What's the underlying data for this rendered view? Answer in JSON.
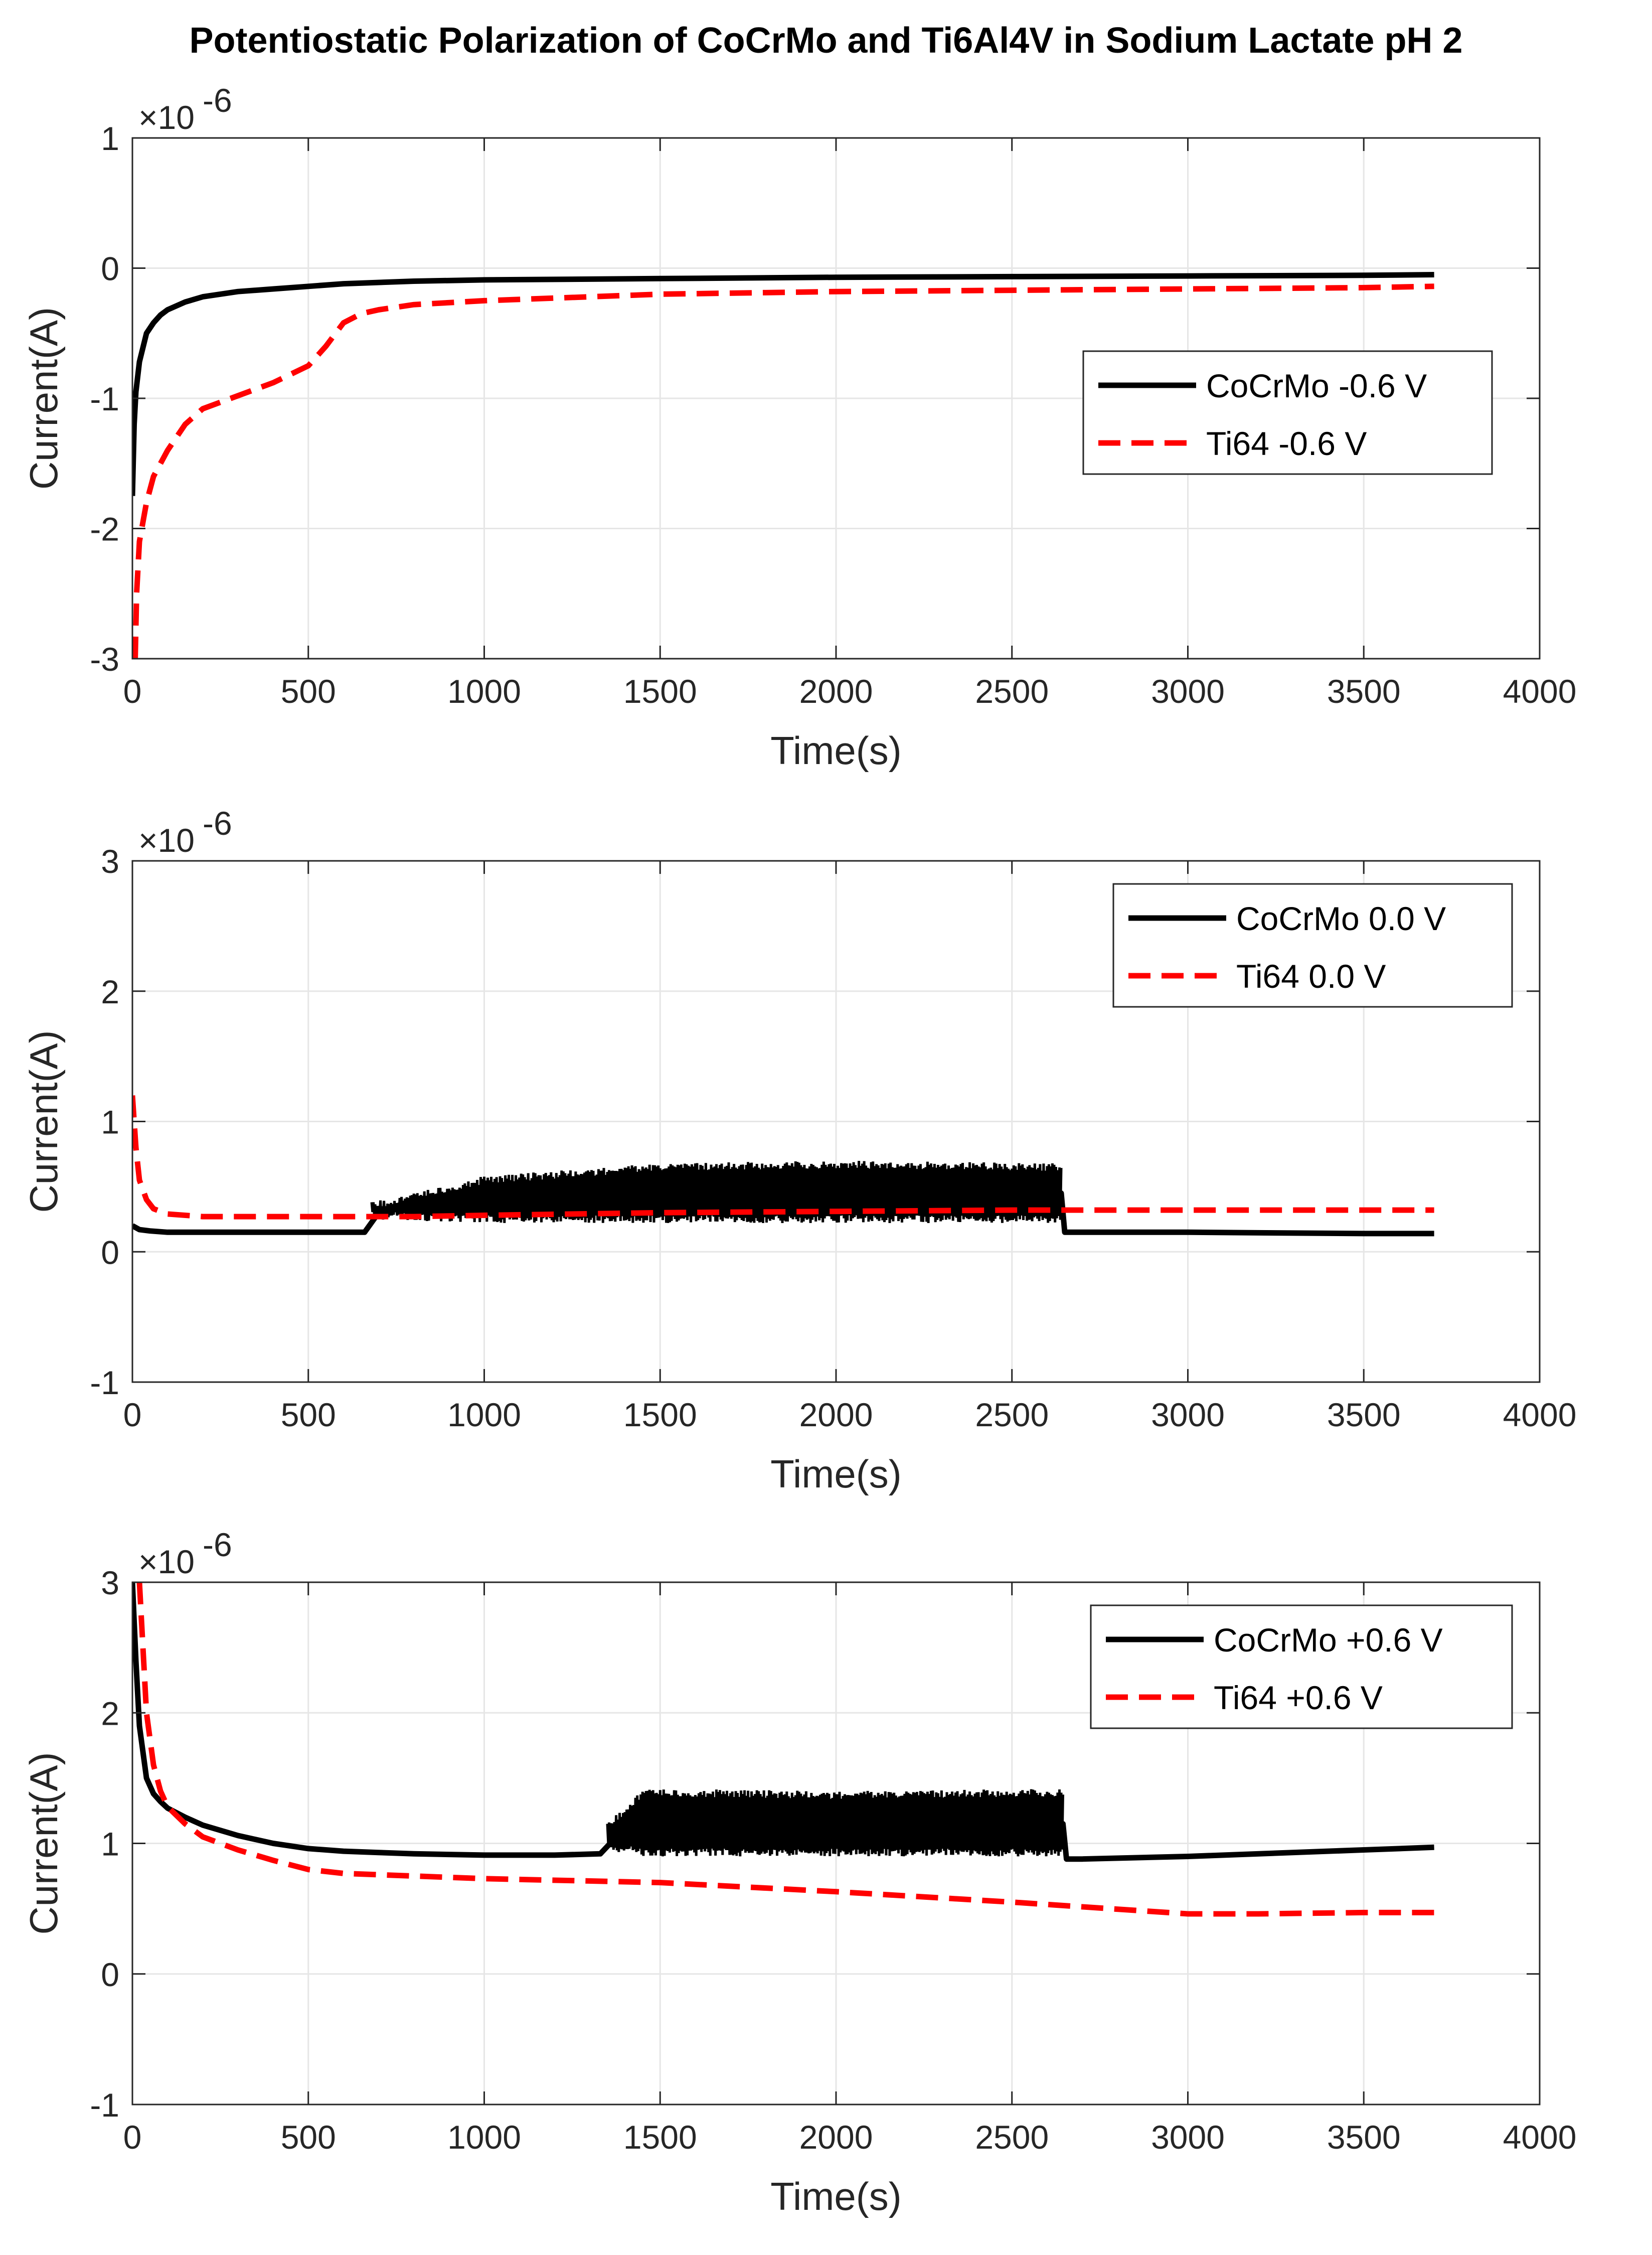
{
  "figure": {
    "title": "Potentiostatic Polarization of CoCrMo and Ti6Al4V in Sodium Lactate pH 2"
  },
  "colors": {
    "cocrmo": "#000000",
    "ti64": "#ff0000",
    "grid": "#e6e6e6",
    "axis": "#262626"
  },
  "chart_data": [
    {
      "type": "line",
      "panel": "top",
      "xlabel": "Time(s)",
      "ylabel": "Current(A)",
      "exponent_label": "×10",
      "exponent_power": "-6",
      "xlim": [
        0,
        4000
      ],
      "ylim": [
        -3,
        1
      ],
      "xticks": [
        "0",
        "500",
        "1000",
        "1500",
        "2000",
        "2500",
        "3000",
        "3500",
        "4000"
      ],
      "yticks": [
        "-3",
        "-2",
        "-1",
        "0",
        "1"
      ],
      "grid": true,
      "legend_position": "upper-right",
      "series": [
        {
          "name": "CoCrMo -0.6 V",
          "style": "solid",
          "color": "#000000",
          "x": [
            0,
            5,
            10,
            20,
            40,
            60,
            80,
            100,
            150,
            200,
            300,
            400,
            500,
            600,
            800,
            1000,
            1500,
            2000,
            2500,
            3000,
            3500,
            3700
          ],
          "y": [
            -1.75,
            -1.2,
            -0.95,
            -0.72,
            -0.5,
            -0.42,
            -0.36,
            -0.32,
            -0.26,
            -0.22,
            -0.18,
            -0.16,
            -0.14,
            -0.12,
            -0.1,
            -0.09,
            -0.08,
            -0.07,
            -0.065,
            -0.06,
            -0.055,
            -0.05
          ]
        },
        {
          "name": "Ti64 -0.6 V",
          "style": "dashed",
          "color": "#ff0000",
          "x": [
            8,
            12,
            20,
            40,
            60,
            80,
            100,
            150,
            200,
            300,
            400,
            500,
            550,
            600,
            650,
            700,
            800,
            1000,
            1500,
            2000,
            2500,
            3000,
            3500,
            3700
          ],
          "y": [
            -3.0,
            -2.5,
            -2.1,
            -1.8,
            -1.6,
            -1.5,
            -1.4,
            -1.2,
            -1.08,
            -0.98,
            -0.88,
            -0.75,
            -0.6,
            -0.42,
            -0.35,
            -0.32,
            -0.28,
            -0.25,
            -0.2,
            -0.18,
            -0.17,
            -0.16,
            -0.15,
            -0.14
          ]
        }
      ]
    },
    {
      "type": "line",
      "panel": "middle",
      "xlabel": "Time(s)",
      "ylabel": "Current(A)",
      "exponent_label": "×10",
      "exponent_power": "-6",
      "xlim": [
        0,
        4000
      ],
      "ylim": [
        -1,
        3
      ],
      "xticks": [
        "0",
        "500",
        "1000",
        "1500",
        "2000",
        "2500",
        "3000",
        "3500",
        "4000"
      ],
      "yticks": [
        "-1",
        "0",
        "1",
        "2",
        "3"
      ],
      "grid": true,
      "legend_position": "upper-right",
      "series": [
        {
          "name": "CoCrMo 0.0 V",
          "style": "solid",
          "color": "#000000",
          "x": [
            0,
            20,
            50,
            100,
            200,
            400,
            600,
            660,
            700,
            800,
            1000,
            1500,
            2000,
            2500,
            2640,
            2650,
            2700,
            3000,
            3500,
            3700
          ],
          "y": [
            0.2,
            0.17,
            0.16,
            0.15,
            0.15,
            0.15,
            0.15,
            0.15,
            0.3,
            0.4,
            0.45,
            0.45,
            0.45,
            0.45,
            0.45,
            0.15,
            0.15,
            0.15,
            0.14,
            0.14
          ],
          "oscillation": {
            "x_start": 680,
            "x_end": 2640,
            "low": [
              0.25,
              0.22,
              0.22,
              0.22,
              0.22
            ],
            "high": [
              0.38,
              0.58,
              0.68,
              0.7,
              0.68
            ],
            "x_ref": [
              680,
              1000,
              1500,
              2000,
              2640
            ]
          }
        },
        {
          "name": "Ti64 0.0 V",
          "style": "dashed",
          "color": "#ff0000",
          "x": [
            0,
            10,
            20,
            40,
            60,
            100,
            200,
            400,
            600,
            800,
            1000,
            1500,
            2000,
            2500,
            3000,
            3500,
            3700
          ],
          "y": [
            1.2,
            0.8,
            0.55,
            0.4,
            0.33,
            0.29,
            0.27,
            0.27,
            0.27,
            0.27,
            0.28,
            0.3,
            0.31,
            0.32,
            0.32,
            0.32,
            0.32
          ]
        }
      ]
    },
    {
      "type": "line",
      "panel": "bottom",
      "xlabel": "Time(s)",
      "ylabel": "Current(A)",
      "exponent_label": "×10",
      "exponent_power": "-6",
      "xlim": [
        0,
        4000
      ],
      "ylim": [
        -1,
        3
      ],
      "xticks": [
        "0",
        "500",
        "1000",
        "1500",
        "2000",
        "2500",
        "3000",
        "3500",
        "4000"
      ],
      "yticks": [
        "-1",
        "0",
        "1",
        "2",
        "3"
      ],
      "grid": true,
      "legend_position": "upper-right",
      "series": [
        {
          "name": "CoCrMo +0.6 V",
          "style": "solid",
          "color": "#000000",
          "x": [
            0,
            10,
            20,
            40,
            60,
            80,
            100,
            150,
            200,
            300,
            400,
            500,
            600,
            700,
            800,
            1000,
            1200,
            1330,
            1400,
            1500,
            2000,
            2600,
            2645,
            2655,
            2700,
            3000,
            3500,
            3700
          ],
          "y": [
            3.0,
            2.4,
            1.9,
            1.5,
            1.38,
            1.32,
            1.27,
            1.2,
            1.14,
            1.06,
            1.0,
            0.96,
            0.94,
            0.93,
            0.92,
            0.91,
            0.91,
            0.92,
            1.12,
            1.15,
            1.15,
            1.15,
            1.15,
            0.88,
            0.88,
            0.9,
            0.95,
            0.97
          ],
          "oscillation": {
            "x_start": 1350,
            "x_end": 2645,
            "low": [
              0.95,
              0.9,
              0.9,
              0.9
            ],
            "high": [
              1.15,
              1.42,
              1.4,
              1.42
            ],
            "x_ref": [
              1350,
              1450,
              2000,
              2645
            ]
          }
        },
        {
          "name": "Ti64 +0.6 V",
          "style": "dashed",
          "color": "#ff0000",
          "x": [
            20,
            30,
            40,
            60,
            80,
            100,
            150,
            200,
            300,
            400,
            500,
            600,
            800,
            1000,
            1500,
            2000,
            2500,
            3000,
            3200,
            3500,
            3700
          ],
          "y": [
            3.0,
            2.5,
            2.0,
            1.6,
            1.4,
            1.28,
            1.15,
            1.05,
            0.95,
            0.87,
            0.8,
            0.77,
            0.75,
            0.73,
            0.7,
            0.63,
            0.55,
            0.46,
            0.46,
            0.47,
            0.47
          ]
        }
      ]
    }
  ]
}
